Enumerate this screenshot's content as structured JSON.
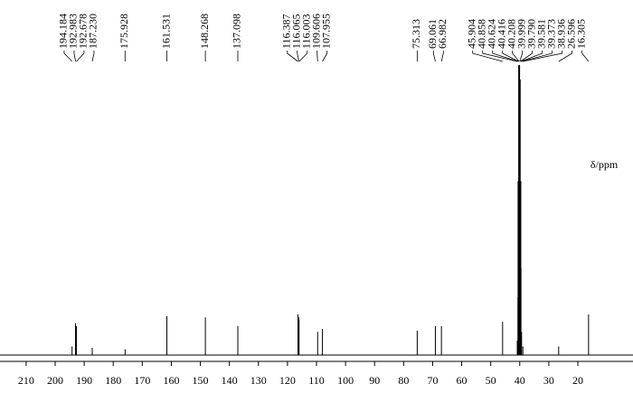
{
  "chart_data": {
    "type": "spectrum",
    "x_label": "δ/ppm",
    "xlim": [
      219,
      1
    ],
    "ylim": [
      0,
      100
    ],
    "xticks": [
      210,
      200,
      190,
      180,
      170,
      160,
      150,
      140,
      130,
      120,
      110,
      100,
      90,
      80,
      70,
      60,
      50,
      40,
      30,
      20
    ],
    "x": [
      194.184,
      192.983,
      192.678,
      187.23,
      175.928,
      161.531,
      148.268,
      137.098,
      116.387,
      116.065,
      116.003,
      109.606,
      107.955,
      75.313,
      69.061,
      66.982,
      45.904,
      40.858,
      40.624,
      40.416,
      40.208,
      39.999,
      39.79,
      39.581,
      39.373,
      38.936,
      26.596,
      16.305
    ],
    "value_labels": [
      "194.184",
      "192.983",
      "192.678",
      "187.230",
      "175.928",
      "161.531",
      "148.268",
      "137.098",
      "116.387",
      "116.065",
      "116.003",
      "109.606",
      "107.955",
      "75.313",
      "69.061",
      "66.982",
      "45.904",
      "40.858",
      "40.624",
      "40.416",
      "40.208",
      "39.999",
      "39.790",
      "39.581",
      "39.373",
      "38.936",
      "26.596",
      "16.305"
    ],
    "values": [
      3,
      11,
      10,
      2.5,
      2,
      13.4,
      13,
      10,
      14,
      13,
      12,
      8,
      9,
      8.4,
      10,
      10,
      11.5,
      5,
      20,
      60,
      100,
      95,
      60,
      30,
      8,
      3,
      3,
      14
    ],
    "color": "#000000"
  }
}
